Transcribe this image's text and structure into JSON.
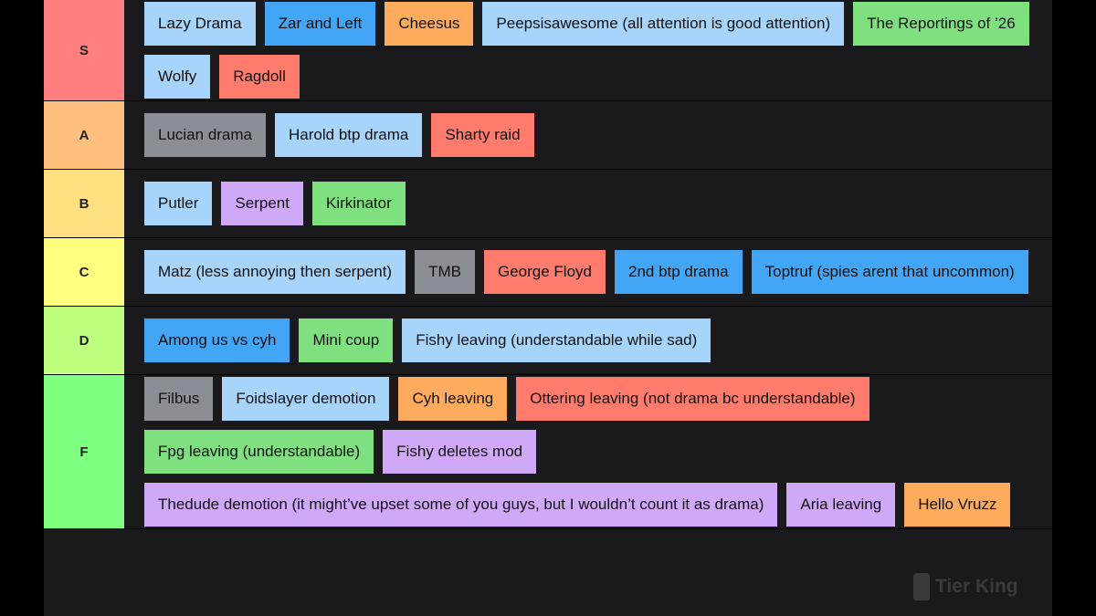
{
  "tiers": [
    {
      "label": "S",
      "color": "#ff7f7f",
      "items": [
        {
          "text": "Lazy Drama",
          "color": "#a6d4fa"
        },
        {
          "text": "Zar and Left",
          "color": "#42a5f5"
        },
        {
          "text": "Cheesus",
          "color": "#ffab5e"
        },
        {
          "text": "Peepsisawesome (all attention is good attention)",
          "color": "#a6d4fa"
        },
        {
          "text": "The Reportings of ’26",
          "color": "#7fe07f"
        },
        {
          "text": "Wolfy",
          "color": "#a6d4fa"
        },
        {
          "text": "Ragdoll",
          "color": "#ff7b6b"
        }
      ]
    },
    {
      "label": "A",
      "color": "#ffbf7f",
      "items": [
        {
          "text": "Lucian drama",
          "color": "#8a8f96"
        },
        {
          "text": "Harold btp drama",
          "color": "#a6d4fa"
        },
        {
          "text": "Sharty raid",
          "color": "#ff7b6b"
        }
      ]
    },
    {
      "label": "B",
      "color": "#ffdf7f",
      "items": [
        {
          "text": "Putler",
          "color": "#a6d4fa"
        },
        {
          "text": "Serpent",
          "color": "#d0a8f8"
        },
        {
          "text": "Kirkinator",
          "color": "#7fe07f"
        }
      ]
    },
    {
      "label": "C",
      "color": "#ffff7f",
      "items": [
        {
          "text": "Matz (less annoying then serpent)",
          "color": "#a6d4fa"
        },
        {
          "text": "TMB",
          "color": "#8a8f96"
        },
        {
          "text": "George Floyd",
          "color": "#ff7b6b"
        },
        {
          "text": "2nd btp drama",
          "color": "#42a5f5"
        },
        {
          "text": "Toptruf (spies arent that uncommon)",
          "color": "#42a5f5"
        }
      ]
    },
    {
      "label": "D",
      "color": "#bfff7f",
      "items": [
        {
          "text": "Among us vs cyh",
          "color": "#42a5f5"
        },
        {
          "text": "Mini coup",
          "color": "#7fe07f"
        },
        {
          "text": "Fishy leaving (understandable while sad)",
          "color": "#a6d4fa"
        }
      ]
    },
    {
      "label": "F",
      "color": "#7fff7f",
      "items": [
        {
          "text": "Filbus",
          "color": "#8a8f96"
        },
        {
          "text": "Foidslayer demotion",
          "color": "#a6d4fa"
        },
        {
          "text": "Cyh leaving",
          "color": "#ffab5e"
        },
        {
          "text": "Ottering leaving (not drama bc understandable)",
          "color": "#ff7b6b"
        },
        {
          "text": "Fpg leaving (understandable)",
          "color": "#7fe07f"
        },
        {
          "text": "Fishy deletes mod",
          "color": "#d0a8f8"
        },
        {
          "text": "Thedude demotion (it might’ve upset some of you guys, but I wouldn’t count it as drama)",
          "color": "#d0a8f8"
        },
        {
          "text": "Aria leaving",
          "color": "#d0a8f8"
        },
        {
          "text": "Hello Vruzz",
          "color": "#ffab5e"
        }
      ]
    }
  ],
  "watermark": {
    "text": "Tier King"
  }
}
